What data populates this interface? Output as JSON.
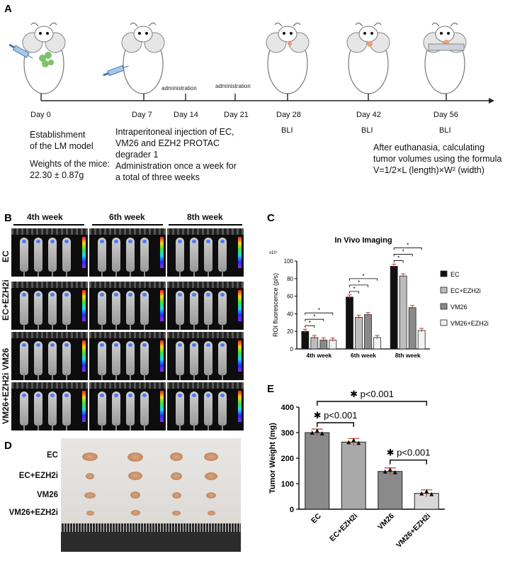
{
  "panels": {
    "a": "A",
    "b": "B",
    "c": "C",
    "d": "D",
    "e": "E"
  },
  "timeline": {
    "days": [
      "Day 0",
      "Day 7",
      "Day 14",
      "Day 21",
      "Day 28",
      "Day 42",
      "Day 56"
    ],
    "admin_labels": [
      "administration",
      "administration"
    ],
    "bli_labels": [
      "BLI",
      "BLI",
      "BLI"
    ],
    "desc_day0": "Establishment\nof the LM model",
    "weights": "Weights of the mice:\n22.30 ± 0.87g",
    "desc_day7": "Intraperitoneal injection of EC,\nVM26 and EZH2 PROTAC\ndegrader 1\nAdministration once a week for\na total of three weeks",
    "desc_end": "After euthanasia, calculating\ntumor volumes using the formula\nV=1/2×L (length)×W² (width)"
  },
  "bli": {
    "weeks": [
      "4th week",
      "6th week",
      "8th week"
    ],
    "rows": [
      "EC",
      "EC+EZH2i",
      "VM26",
      "VM26+EZH2i"
    ]
  },
  "tumors": {
    "rows": [
      "EC",
      "EC+EZH2i",
      "VM26",
      "VM26+EZH2i"
    ]
  },
  "chart_data": [
    {
      "type": "bar",
      "title": "In Vivo Imaging",
      "ylabel": "ROI fluorescence (p/s)",
      "y_multiplier": "x10⁷",
      "categories": [
        "4th week",
        "6th week",
        "8th week"
      ],
      "ylim": [
        0,
        100
      ],
      "yticks": [
        0,
        20,
        40,
        60,
        80,
        100
      ],
      "series": [
        {
          "name": "EC",
          "values": [
            20,
            59,
            94
          ],
          "color": "#111111"
        },
        {
          "name": "EC+EZH2i",
          "values": [
            13,
            36,
            83
          ],
          "color": "#bdbdbd"
        },
        {
          "name": "VM26",
          "values": [
            10,
            39,
            47
          ],
          "color": "#8a8a8a"
        },
        {
          "name": "VM26+EZH2i",
          "values": [
            10,
            13,
            21
          ],
          "color": "#f2f2f2"
        }
      ],
      "legend": "right",
      "significance": "*"
    },
    {
      "type": "bar",
      "ylabel": "Tumor Weight (mg)",
      "categories": [
        "EC",
        "EC+EZH2i",
        "VM26",
        "VM26+EZH2i"
      ],
      "values": [
        300,
        263,
        148,
        62
      ],
      "colors": [
        "#8a8a8a",
        "#a9a9a9",
        "#8a8a8a",
        "#d8d8d8"
      ],
      "ylim": [
        0,
        400
      ],
      "yticks": [
        0,
        100,
        200,
        300,
        400
      ],
      "annotations": [
        "✱ p<0.001",
        "✱ p<0.001",
        "✱ p<0.001"
      ]
    }
  ]
}
